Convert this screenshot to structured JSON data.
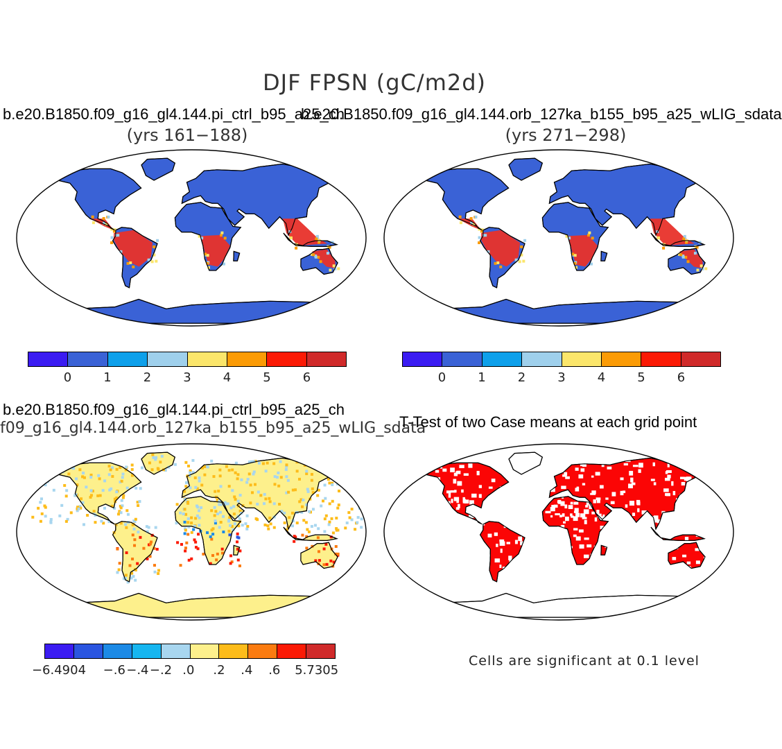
{
  "title": "DJF FPSN (gC/m2d)",
  "panels": {
    "top_left": {
      "case": "b.e20.B1850.f09_g16_gl4.144.pi_ctrl_b95_a25_ch",
      "years": "(yrs 161−188)"
    },
    "top_right": {
      "case": "b.e20.B1850.f09_g16_gl4.144.orb_127ka_b155_b95_a25_wLIG_sdata",
      "years": "(yrs 271−298)"
    },
    "bottom_left": {
      "case": "b.e20.B1850.f09_g16_gl4.144.pi_ctrl_b95_a25_ch",
      "subtitle": "f09_g16_gl4.144.orb_127ka_b155_b95_a25_wLIG_sdata"
    },
    "bottom_right": {
      "title": "T-Test of two Case means at each grid point",
      "note": "Cells are significant at 0.1 level"
    }
  },
  "colorbars": {
    "abs": {
      "colors": [
        "#3b1cf2",
        "#3a62d6",
        "#0ea0ea",
        "#9fd0ec",
        "#fbe66b",
        "#fb9b05",
        "#fb1a05",
        "#d02a2a"
      ],
      "labels": [
        "0",
        "1",
        "2",
        "3",
        "4",
        "5",
        "6"
      ]
    },
    "diff": {
      "colors": [
        "#3b1cf2",
        "#2a55e0",
        "#1c8ae6",
        "#16b6f0",
        "#a8d6ef",
        "#fdf08c",
        "#fdbc1a",
        "#fb7b10",
        "#fb1a05",
        "#d02a2a"
      ],
      "labels": [
        "−6.4904",
        "−.6",
        "−.4",
        "−.2",
        ".0",
        ".2",
        ".4",
        ".6",
        "5.7305"
      ]
    }
  },
  "colors": {
    "ocean": "#ffffff",
    "coast": "#000000",
    "land_low": "#3a62d6",
    "land_high": "#e8322a",
    "diff_land": "#fdf08c",
    "ttest": "#fb0505"
  }
}
